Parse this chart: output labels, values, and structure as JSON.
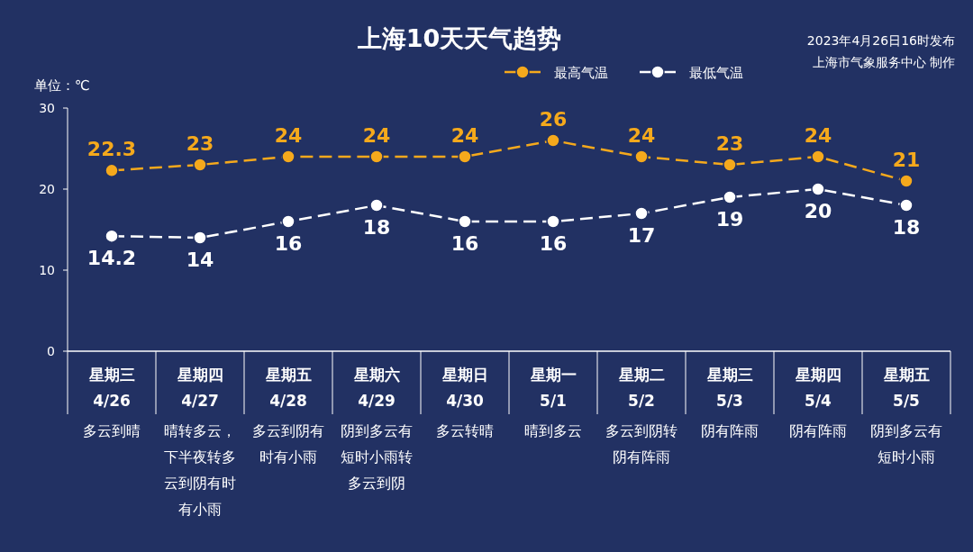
{
  "chart_data": {
    "type": "line",
    "title": "上海10天天气趋势",
    "ylabel": "单位：℃",
    "categories": [
      "星期三\n4/26\n多云到晴",
      "星期四\n4/27\n晴转多云，下半夜转多云到阴有时有小雨",
      "星期五\n4/28\n多云到阴有时有小雨",
      "星期六\n4/29\n阴到多云有短时小雨转多云到阴",
      "星期日\n4/30\n多云转晴",
      "星期一\n5/1\n晴到多云",
      "星期二\n5/2\n多云到阴转阴有阵雨",
      "星期三\n5/3\n阴有阵雨",
      "星期四\n5/4\n阴有阵雨",
      "星期五\n5/5\n阴到多云有短时小雨"
    ],
    "series": [
      {
        "name": "最高气温",
        "color": "#f5a91c",
        "values": [
          22.3,
          23,
          24,
          24,
          24,
          26,
          24,
          23,
          24,
          21
        ]
      },
      {
        "name": "最低气温",
        "color": "#ffffff",
        "values": [
          14.2,
          14,
          16,
          18,
          16,
          16,
          17,
          19,
          20,
          18
        ]
      }
    ],
    "ylim": [
      0,
      30
    ],
    "yticks": [
      0,
      10,
      20,
      30
    ],
    "grid": false,
    "legend": "top",
    "marker": "circle",
    "line_style": "dashed",
    "data_labels": true,
    "annotations": [
      "2023年4月26日16时发布",
      "上海市气象服务中心 制作"
    ]
  }
}
